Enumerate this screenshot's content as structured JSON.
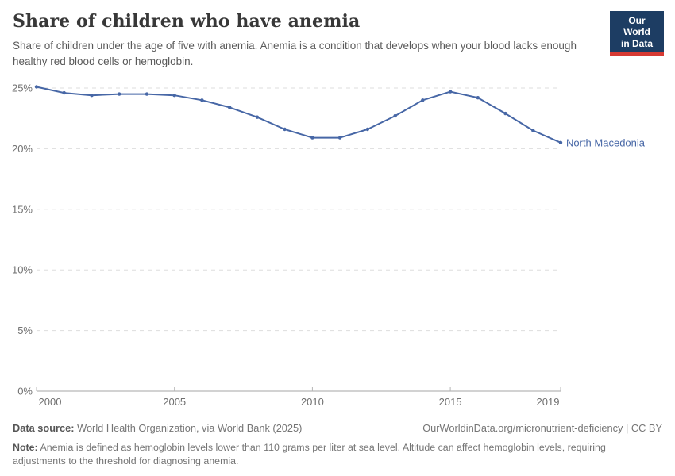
{
  "header": {
    "title": "Share of children who have anemia",
    "subtitle": "Share of children under the age of five with anemia. Anemia is a condition that develops when your blood lacks enough healthy red blood cells or hemoglobin.",
    "logo": {
      "line1": "Our World",
      "line2": "in Data"
    }
  },
  "chart_data": {
    "type": "line",
    "title": "Share of children who have anemia",
    "x": [
      2000,
      2001,
      2002,
      2003,
      2004,
      2005,
      2006,
      2007,
      2008,
      2009,
      2010,
      2011,
      2012,
      2013,
      2014,
      2015,
      2016,
      2017,
      2018,
      2019
    ],
    "series": [
      {
        "name": "North Macedonia",
        "values": [
          25.1,
          24.6,
          24.4,
          24.5,
          24.5,
          24.4,
          24.0,
          23.4,
          22.6,
          21.6,
          20.9,
          20.9,
          21.6,
          22.7,
          24.0,
          24.7,
          24.2,
          22.9,
          21.5,
          20.5
        ]
      }
    ],
    "xlabel": "",
    "ylabel": "",
    "ylim": [
      0,
      25
    ],
    "yticks": [
      {
        "value": 0,
        "label": "0%"
      },
      {
        "value": 5,
        "label": "5%"
      },
      {
        "value": 10,
        "label": "10%"
      },
      {
        "value": 15,
        "label": "15%"
      },
      {
        "value": 20,
        "label": "20%"
      },
      {
        "value": 25,
        "label": "25%"
      }
    ],
    "xticks": [
      {
        "value": 2000,
        "label": "2000"
      },
      {
        "value": 2005,
        "label": "2005"
      },
      {
        "value": 2010,
        "label": "2010"
      },
      {
        "value": 2015,
        "label": "2015"
      },
      {
        "value": 2019,
        "label": "2019"
      }
    ],
    "grid": "horizontal-dashed",
    "legend_position": "end-of-line-label",
    "end_label": "North Macedonia"
  },
  "footer": {
    "source_label": "Data source:",
    "source_text": "World Health Organization, via World Bank (2025)",
    "link": "OurWorldinData.org/micronutrient-deficiency | CC BY",
    "note_label": "Note:",
    "note_text": "Anemia is defined as hemoglobin levels lower than 110 grams per liter at sea level. Altitude can affect hemoglobin levels, requiring adjustments to the threshold for diagnosing anemia."
  },
  "colors": {
    "line": "#4767a6",
    "grid": "#dddddd",
    "axis": "#a5a5a5",
    "tick": "#b5b5b5",
    "title": "#383838",
    "subtitle": "#5a5a5a",
    "footer_text": "#757575",
    "logo_bg": "#1d3d63",
    "logo_stripe": "#d73a33"
  }
}
